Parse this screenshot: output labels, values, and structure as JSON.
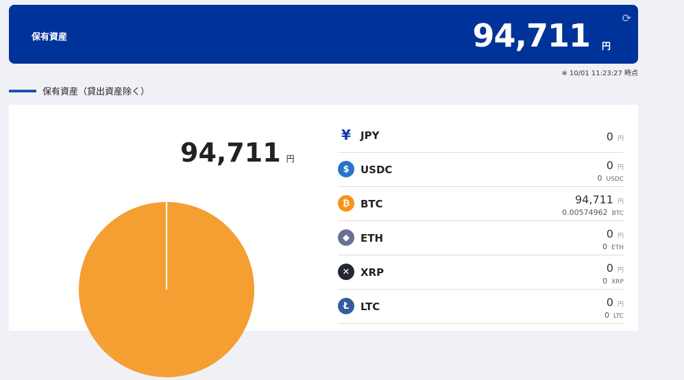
{
  "header": {
    "label": "保有資産",
    "total": "94,711",
    "unit": "円",
    "timestamp": "※ 10/01 11:23:27 時点"
  },
  "section": {
    "title": "保有資産（貸出資産除く）"
  },
  "summary": {
    "total": "94,711",
    "unit": "円"
  },
  "chart_data": {
    "type": "pie",
    "categories": [
      "BTC"
    ],
    "values": [
      94711
    ],
    "colors": [
      "#f59e32"
    ]
  },
  "assets": [
    {
      "code": "JPY",
      "icon": "yen-icon",
      "color": "#0d3aa9",
      "jpy": "0",
      "yen": "円"
    },
    {
      "code": "USDC",
      "icon": "usdc-icon",
      "color": "#2775ca",
      "jpy": "0",
      "yen": "円",
      "amount": "0",
      "unit": "USDC"
    },
    {
      "code": "BTC",
      "icon": "bitcoin-icon",
      "color": "#f7931a",
      "jpy": "94,711",
      "yen": "円",
      "amount": "0.00574962",
      "unit": "BTC"
    },
    {
      "code": "ETH",
      "icon": "ethereum-icon",
      "color": "#6b6f94",
      "jpy": "0",
      "yen": "円",
      "amount": "0",
      "unit": "ETH"
    },
    {
      "code": "XRP",
      "icon": "xrp-icon",
      "color": "#23292f",
      "jpy": "0",
      "yen": "円",
      "amount": "0",
      "unit": "XRP"
    },
    {
      "code": "LTC",
      "icon": "litecoin-icon",
      "color": "#345d9d",
      "jpy": "0",
      "yen": "円",
      "amount": "0",
      "unit": "LTC"
    }
  ]
}
